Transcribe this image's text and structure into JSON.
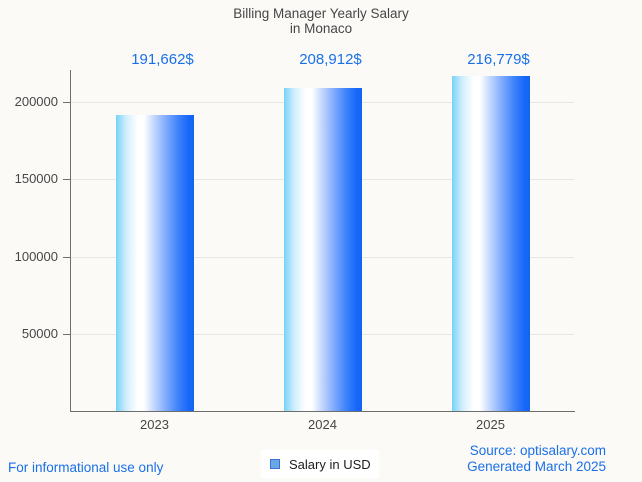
{
  "chart_data": {
    "type": "bar",
    "title_line1": "Billing Manager Yearly Salary",
    "title_line2": "in Monaco",
    "categories": [
      "2023",
      "2024",
      "2025"
    ],
    "values": [
      191662,
      208912,
      216779
    ],
    "value_labels": [
      "191,662$",
      "208,912$",
      "216,779$"
    ],
    "value_suffix": "$",
    "ylim": [
      0,
      220000
    ],
    "yticks": [
      50000,
      100000,
      150000,
      200000
    ],
    "ytick_labels": [
      "50000",
      "100000",
      "150000",
      "200000"
    ],
    "grid": "horizontal-only",
    "legend": {
      "label": "Salary in USD",
      "position": "bottom",
      "marker_fill": "#66a9e4",
      "marker_border": "#3f6fd2"
    },
    "bar_gradient": [
      "#76d2f8",
      "#ffffff",
      "#1263f2"
    ],
    "accent_text_color": "#1a70e8",
    "axis_text_color": "#474747"
  },
  "footer": {
    "left_note": "For informational use only",
    "source": "Source: optisalary.com",
    "generated": "Generated March 2025"
  }
}
